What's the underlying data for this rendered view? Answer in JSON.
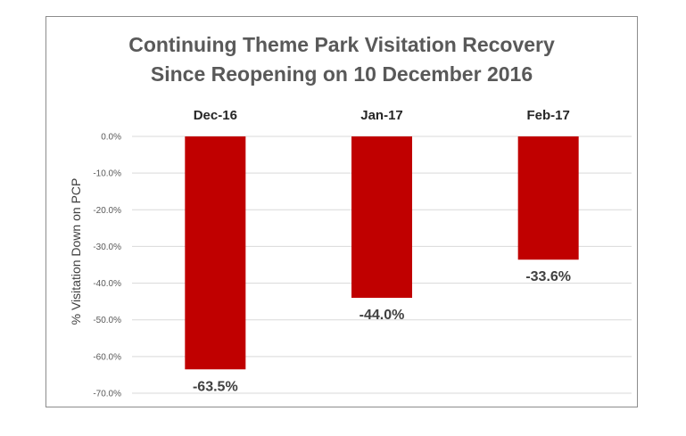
{
  "chart_data": {
    "type": "bar",
    "title": "Continuing Theme Park Visitation Recovery",
    "subtitle": "Since Reopening on 10 December 2016",
    "xlabel": "",
    "ylabel": "% Visitation Down on PCP",
    "categories": [
      "Dec-16",
      "Jan-17",
      "Feb-17"
    ],
    "values": [
      -63.5,
      -44.0,
      -33.6
    ],
    "data_labels": [
      "-63.5%",
      "-44.0%",
      "-33.6%"
    ],
    "ylim": [
      -70,
      0
    ],
    "yticks": [
      0,
      -10,
      -20,
      -30,
      -40,
      -50,
      -60,
      -70
    ],
    "ytick_labels": [
      "0.0%",
      "-10.0%",
      "-20.0%",
      "-30.0%",
      "-40.0%",
      "-50.0%",
      "-60.0%",
      "-70.0%"
    ],
    "category_axis_position": "top",
    "grid": true,
    "bar_color": "#c00000",
    "grid_color": "#d9d9d9"
  }
}
